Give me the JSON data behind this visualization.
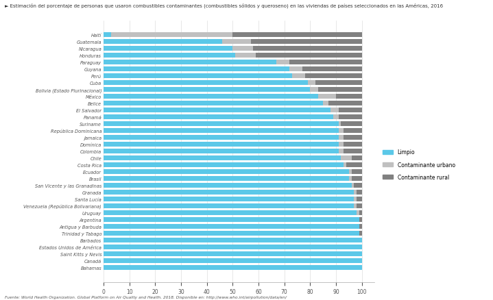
{
  "title": "► Estimación del porcentaje de personas que usaron combustibles contaminantes (combustibles sólidos y queroseno) en las viviendas de países seleccionados en las Américas, 2016",
  "countries": [
    "Haití",
    "Guatemala",
    "Nicaragua",
    "Honduras",
    "Paraguay",
    "Guyana",
    "Perú",
    "Cuba",
    "Bolivia (Estado Plurinacional)",
    "México",
    "Belice",
    "El Salvador",
    "Panamá",
    "Suriname",
    "República Dominicana",
    "Jamaica",
    "Domínica",
    "Colombia",
    "Chile",
    "Costa Rica",
    "Ecuador",
    "Brasil",
    "San Vicente y las Granadinas",
    "Granada",
    "Santa Lucía",
    "Venezuela (República Bolivariana)",
    "Uruguay",
    "Argentina",
    "Antigua y Barbuda",
    "Trinidad y Tabago",
    "Barbados",
    "Estados Unidos de América",
    "Saint Kitts y Nevis",
    "Canadá",
    "Bahamas"
  ],
  "limpio": [
    3,
    46,
    50,
    51,
    67,
    72,
    73,
    79,
    80,
    83,
    85,
    88,
    89,
    91,
    91,
    91,
    91,
    91,
    92,
    93,
    95,
    95,
    96,
    97,
    97,
    97,
    98,
    99,
    99,
    99,
    100,
    100,
    100,
    100,
    100
  ],
  "contaminante_urbano": [
    47,
    11,
    8,
    8,
    5,
    5,
    5,
    3,
    3,
    7,
    2,
    3,
    2,
    1,
    2,
    2,
    2,
    2,
    4,
    1,
    1,
    1,
    1,
    1,
    1,
    1,
    1,
    0,
    0,
    0,
    0,
    0,
    0,
    0,
    0
  ],
  "contaminante_rural": [
    50,
    43,
    42,
    41,
    28,
    23,
    22,
    18,
    17,
    10,
    13,
    9,
    9,
    8,
    7,
    7,
    7,
    7,
    4,
    6,
    4,
    4,
    3,
    2,
    2,
    2,
    1,
    1,
    1,
    1,
    0,
    0,
    0,
    0,
    0
  ],
  "color_limpio": "#5bc8e8",
  "color_urbano": "#c0c0c0",
  "color_rural": "#808080",
  "xlim": [
    0,
    105
  ],
  "xticks": [
    0,
    10,
    20,
    30,
    40,
    50,
    60,
    70,
    80,
    90,
    100
  ],
  "legend_labels": [
    "Limpio",
    "Contaminante urbano",
    "Contaminante rural"
  ],
  "footnote": "Fuente: World Health Organization. Global Platform on Air Quality and Health. 2018. Disponible en: http://www.who.int/airpollution/data/en/",
  "background_color": "#ffffff",
  "bar_height": 0.7
}
